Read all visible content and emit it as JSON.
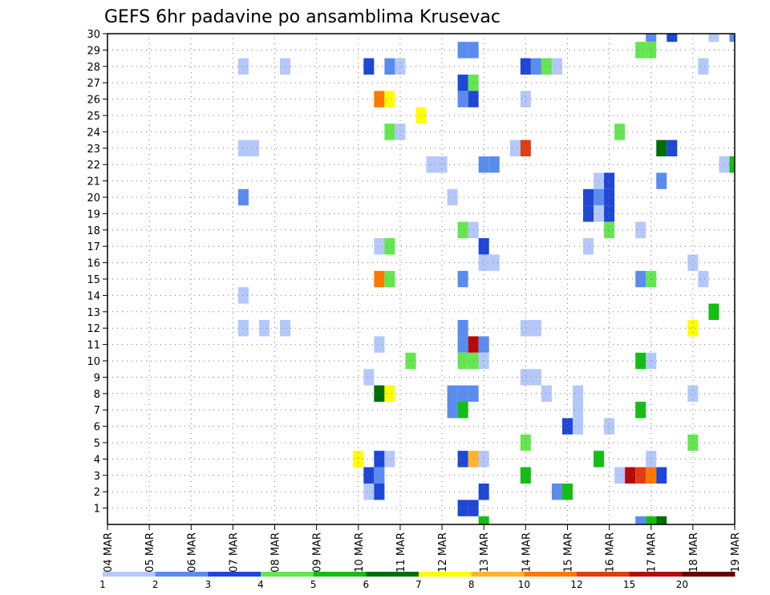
{
  "chart_data": {
    "type": "heatmap",
    "title": "GEFS 6hr padavine po ansamblima Krusevac",
    "x_tick_labels": [
      "04 MAR",
      "05 MAR",
      "06 MAR",
      "07 MAR",
      "08 MAR",
      "09 MAR",
      "10 MAR",
      "11 MAR",
      "12 MAR",
      "13 MAR",
      "14 MAR",
      "15 MAR",
      "16 MAR",
      "17 MAR",
      "18 MAR",
      "19 MAR"
    ],
    "y_tick_labels": [
      "1",
      "2",
      "3",
      "4",
      "5",
      "6",
      "7",
      "8",
      "9",
      "10",
      "11",
      "12",
      "13",
      "14",
      "15",
      "16",
      "17",
      "18",
      "19",
      "20",
      "21",
      "22",
      "23",
      "24",
      "25",
      "26",
      "27",
      "28",
      "29",
      "30"
    ],
    "x_unit": "6-hour step from 04 MAR 00Z",
    "y_unit": "ensemble member",
    "xlim": [
      0,
      60
    ],
    "ylim": [
      0,
      30
    ],
    "grid": true,
    "colorbar": {
      "labels": [
        "1",
        "2",
        "3",
        "4",
        "5",
        "6",
        "7",
        "8",
        "10",
        "12",
        "15",
        "20"
      ],
      "colors": [
        "#b4c8fa",
        "#5a8cf0",
        "#1e46d7",
        "#64e650",
        "#14be14",
        "#006e00",
        "#ffff00",
        "#ffb42d",
        "#ff7800",
        "#e13c14",
        "#b40a0a",
        "#640000"
      ]
    },
    "cells": [
      [
        52,
        30,
        2
      ],
      [
        54,
        30,
        3
      ],
      [
        58,
        30,
        1
      ],
      [
        60,
        30,
        2
      ],
      [
        34,
        29,
        2
      ],
      [
        35,
        29,
        2
      ],
      [
        51,
        29,
        4
      ],
      [
        52,
        29,
        4
      ],
      [
        13,
        28,
        1
      ],
      [
        17,
        28,
        1
      ],
      [
        25,
        28,
        3
      ],
      [
        27,
        28,
        2
      ],
      [
        28,
        28,
        1
      ],
      [
        40,
        28,
        3
      ],
      [
        41,
        28,
        2
      ],
      [
        42,
        28,
        4
      ],
      [
        43,
        28,
        1
      ],
      [
        57,
        28,
        1
      ],
      [
        34,
        27,
        3
      ],
      [
        35,
        27,
        4
      ],
      [
        65,
        27,
        5
      ],
      [
        26,
        26,
        9
      ],
      [
        27,
        26,
        7
      ],
      [
        34,
        26,
        2
      ],
      [
        35,
        26,
        3
      ],
      [
        40,
        26,
        1
      ],
      [
        66,
        26,
        1
      ],
      [
        67,
        26,
        1
      ],
      [
        30,
        25,
        7
      ],
      [
        27,
        24,
        4
      ],
      [
        28,
        24,
        1
      ],
      [
        49,
        24,
        4
      ],
      [
        62,
        24,
        1
      ],
      [
        63,
        24,
        5
      ],
      [
        64,
        24,
        6
      ],
      [
        65,
        24,
        6
      ],
      [
        66,
        24,
        4
      ],
      [
        67,
        24,
        1
      ],
      [
        13,
        23,
        1
      ],
      [
        14,
        23,
        1
      ],
      [
        39,
        23,
        1
      ],
      [
        40,
        23,
        10
      ],
      [
        53,
        23,
        6
      ],
      [
        54,
        23,
        3
      ],
      [
        31,
        22,
        1
      ],
      [
        32,
        22,
        1
      ],
      [
        36,
        22,
        2
      ],
      [
        37,
        22,
        2
      ],
      [
        59,
        22,
        1
      ],
      [
        60,
        22,
        5
      ],
      [
        47,
        21,
        1
      ],
      [
        48,
        21,
        3
      ],
      [
        53,
        21,
        2
      ],
      [
        62,
        21,
        7
      ],
      [
        13,
        20,
        2
      ],
      [
        33,
        20,
        1
      ],
      [
        46,
        20,
        3
      ],
      [
        47,
        20,
        2
      ],
      [
        48,
        20,
        3
      ],
      [
        61,
        20,
        1
      ],
      [
        62,
        20,
        3
      ],
      [
        63,
        20,
        2
      ],
      [
        65,
        20,
        3
      ],
      [
        46,
        19,
        3
      ],
      [
        47,
        19,
        1
      ],
      [
        48,
        19,
        3
      ],
      [
        34,
        18,
        4
      ],
      [
        35,
        18,
        1
      ],
      [
        48,
        18,
        4
      ],
      [
        51,
        18,
        1
      ],
      [
        64,
        18,
        3
      ],
      [
        65,
        18,
        3
      ],
      [
        66,
        18,
        1
      ],
      [
        26,
        17,
        1
      ],
      [
        27,
        17,
        4
      ],
      [
        36,
        17,
        3
      ],
      [
        46,
        17,
        1
      ],
      [
        65,
        17,
        2
      ],
      [
        36,
        16,
        1
      ],
      [
        37,
        16,
        1
      ],
      [
        56,
        16,
        1
      ],
      [
        65,
        16,
        2
      ],
      [
        66,
        16,
        3
      ],
      [
        26,
        15,
        9
      ],
      [
        27,
        15,
        4
      ],
      [
        34,
        15,
        2
      ],
      [
        51,
        15,
        2
      ],
      [
        52,
        15,
        4
      ],
      [
        57,
        15,
        1
      ],
      [
        13,
        14,
        1
      ],
      [
        58,
        13,
        5
      ],
      [
        62,
        12,
        2
      ],
      [
        13,
        12,
        1
      ],
      [
        15,
        12,
        1
      ],
      [
        17,
        12,
        1
      ],
      [
        34,
        12,
        2
      ],
      [
        40,
        12,
        1
      ],
      [
        41,
        12,
        1
      ],
      [
        56,
        12,
        7
      ],
      [
        26,
        11,
        1
      ],
      [
        34,
        11,
        2
      ],
      [
        35,
        11,
        11
      ],
      [
        36,
        11,
        2
      ],
      [
        29,
        10,
        4
      ],
      [
        34,
        10,
        4
      ],
      [
        35,
        10,
        4
      ],
      [
        36,
        10,
        1
      ],
      [
        51,
        10,
        5
      ],
      [
        52,
        10,
        1
      ],
      [
        64,
        10,
        1
      ],
      [
        65,
        10,
        5
      ],
      [
        25,
        9,
        1
      ],
      [
        40,
        9,
        1
      ],
      [
        41,
        9,
        1
      ],
      [
        63,
        9,
        1
      ],
      [
        26,
        8,
        6
      ],
      [
        27,
        8,
        7
      ],
      [
        33,
        8,
        2
      ],
      [
        34,
        8,
        2
      ],
      [
        35,
        8,
        2
      ],
      [
        42,
        8,
        1
      ],
      [
        45,
        8,
        1
      ],
      [
        56,
        8,
        1
      ],
      [
        33,
        7,
        2
      ],
      [
        34,
        7,
        5
      ],
      [
        45,
        7,
        1
      ],
      [
        51,
        7,
        5
      ],
      [
        67,
        7,
        11
      ],
      [
        68,
        7,
        7
      ],
      [
        44,
        6,
        3
      ],
      [
        45,
        6,
        1
      ],
      [
        48,
        6,
        1
      ],
      [
        40,
        5,
        4
      ],
      [
        56,
        5,
        4
      ],
      [
        24,
        4,
        7
      ],
      [
        26,
        4,
        3
      ],
      [
        27,
        4,
        1
      ],
      [
        34,
        4,
        3
      ],
      [
        35,
        4,
        8
      ],
      [
        36,
        4,
        1
      ],
      [
        47,
        4,
        5
      ],
      [
        52,
        4,
        1
      ],
      [
        65,
        4,
        2
      ],
      [
        66,
        4,
        8
      ],
      [
        25,
        3,
        3
      ],
      [
        26,
        3,
        2
      ],
      [
        40,
        3,
        5
      ],
      [
        49,
        3,
        1
      ],
      [
        50,
        3,
        11
      ],
      [
        51,
        3,
        10
      ],
      [
        52,
        3,
        9
      ],
      [
        53,
        3,
        3
      ],
      [
        25,
        2,
        1
      ],
      [
        26,
        2,
        3
      ],
      [
        36,
        2,
        3
      ],
      [
        43,
        2,
        2
      ],
      [
        44,
        2,
        5
      ],
      [
        34,
        1,
        3
      ],
      [
        35,
        1,
        3
      ],
      [
        63,
        1,
        1
      ],
      [
        36,
        0,
        5
      ],
      [
        51,
        0,
        2
      ],
      [
        52,
        0,
        5
      ],
      [
        53,
        0,
        6
      ]
    ]
  }
}
